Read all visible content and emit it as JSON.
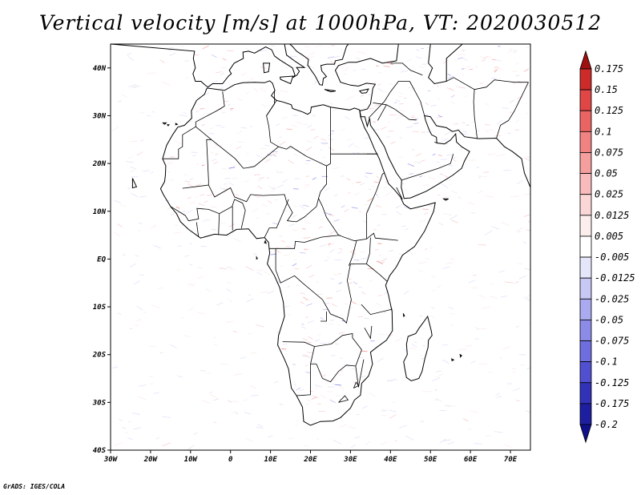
{
  "title": "Vertical velocity [m/s] at 1000hPa, VT: 2020030512",
  "footer": "GrADS: IGES/COLA",
  "map": {
    "lon_range": [
      -30,
      75
    ],
    "lat_range": [
      -40,
      45
    ],
    "x_ticks": [
      "30W",
      "20W",
      "10W",
      "0",
      "10E",
      "20E",
      "30E",
      "40E",
      "50E",
      "60E",
      "70E"
    ],
    "y_ticks": [
      "40S",
      "30S",
      "20S",
      "10S",
      "EQ",
      "10N",
      "20N",
      "30N",
      "40N"
    ],
    "background": "#ffffff",
    "coastline_color": "#000000"
  },
  "colorbar": {
    "levels": [
      "0.175",
      "0.15",
      "0.125",
      "0.1",
      "0.075",
      "0.05",
      "0.025",
      "0.0125",
      "0.005",
      "-0.005",
      "-0.0125",
      "-0.025",
      "-0.05",
      "-0.075",
      "-0.1",
      "-0.125",
      "-0.175",
      "-0.2"
    ],
    "colors": [
      "#b41414",
      "#cd2a2a",
      "#e04646",
      "#ea6464",
      "#f08282",
      "#f49e9e",
      "#f8baba",
      "#fbd6d6",
      "#fdeeee",
      "#ffffff",
      "#e6e6fa",
      "#c8c8f5",
      "#aaaaf0",
      "#8c8ce8",
      "#6e6ee0",
      "#5050d0",
      "#3232b8",
      "#1e1ea0",
      "#14148c"
    ],
    "top_arrow_color": "#a01010",
    "bottom_arrow_color": "#10108c"
  }
}
